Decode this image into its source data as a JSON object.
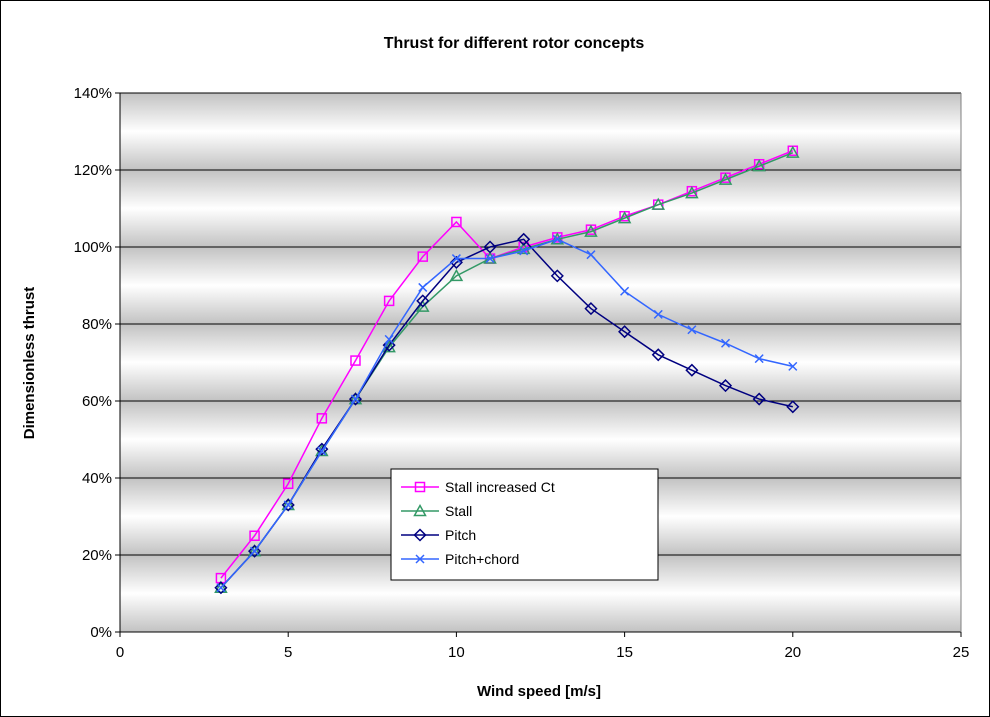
{
  "chart_data": {
    "type": "line",
    "title": "Thrust for different rotor concepts",
    "xlabel": "Wind speed [m/s]",
    "ylabel": "Dimensionless thrust",
    "xlim": [
      0,
      25
    ],
    "ylim": [
      0,
      140
    ],
    "x_ticks": [
      0,
      5,
      10,
      15,
      20,
      25
    ],
    "x_tick_labels": [
      "0",
      "5",
      "10",
      "15",
      "20",
      "25"
    ],
    "y_ticks": [
      0,
      20,
      40,
      60,
      80,
      100,
      120,
      140
    ],
    "y_tick_labels": [
      "0%",
      "20%",
      "40%",
      "60%",
      "80%",
      "100%",
      "120%",
      "140%"
    ],
    "grid": "horizontal",
    "legend_position": "center-left",
    "series": [
      {
        "name": "Stall increased Ct",
        "color": "#ff00ff",
        "marker": "square",
        "x": [
          3,
          4,
          5,
          6,
          7,
          8,
          9,
          10,
          11,
          12,
          13,
          14,
          15,
          16,
          17,
          18,
          19,
          20
        ],
        "y": [
          14,
          25,
          38.5,
          55.5,
          70.5,
          86,
          97.5,
          106.5,
          97,
          100,
          102.5,
          104.5,
          108,
          111,
          114.5,
          118,
          121.5,
          125
        ]
      },
      {
        "name": "Stall",
        "color": "#339966",
        "marker": "triangle",
        "x": [
          3,
          4,
          5,
          6,
          7,
          8,
          9,
          10,
          11,
          12,
          13,
          14,
          15,
          16,
          17,
          18,
          19,
          20
        ],
        "y": [
          11.5,
          21,
          33,
          47,
          60.5,
          74,
          84.5,
          92.5,
          97,
          99.5,
          102,
          104,
          107.5,
          111,
          114,
          117.5,
          121,
          124.5
        ]
      },
      {
        "name": "Pitch",
        "color": "#000080",
        "marker": "diamond",
        "x": [
          3,
          4,
          5,
          6,
          7,
          8,
          9,
          10,
          11,
          12,
          13,
          14,
          15,
          16,
          17,
          18,
          19,
          20
        ],
        "y": [
          11.5,
          21,
          33,
          47.5,
          60.5,
          74.5,
          86,
          96,
          100,
          102,
          92.5,
          84,
          78,
          72,
          68,
          64,
          60.5,
          58.5
        ]
      },
      {
        "name": "Pitch+chord",
        "color": "#3366ff",
        "marker": "x",
        "x": [
          3,
          4,
          5,
          6,
          7,
          8,
          9,
          10,
          11,
          12,
          13,
          14,
          15,
          16,
          17,
          18,
          19,
          20
        ],
        "y": [
          11.5,
          21,
          33,
          47,
          60.5,
          76,
          89.5,
          97,
          97,
          99,
          102,
          98,
          88.5,
          82.5,
          78.5,
          75,
          71,
          69
        ]
      }
    ]
  }
}
